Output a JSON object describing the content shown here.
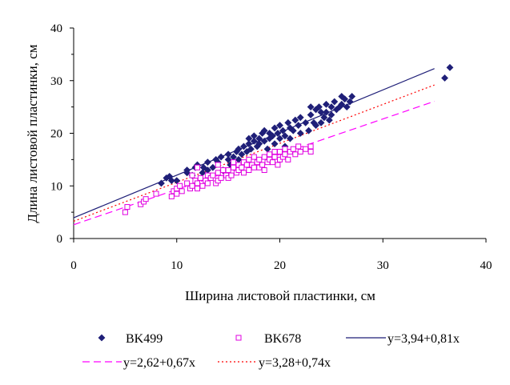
{
  "chart_data": {
    "type": "scatter",
    "title": "",
    "xlabel": "Ширина листовой пластинки, см",
    "ylabel": "Длина листовой пластинки, см",
    "xlim": [
      0,
      40
    ],
    "ylim": [
      0,
      40
    ],
    "x_ticks": [
      "0",
      "10",
      "20",
      "30",
      "40"
    ],
    "y_ticks": [
      "0",
      "10",
      "20",
      "30",
      "40"
    ],
    "grid": false,
    "legend_position": "bottom",
    "series": [
      {
        "name": "BK499",
        "kind": "points",
        "marker": "diamond",
        "color": "#1f1f78",
        "points": [
          [
            8.5,
            10.5
          ],
          [
            9.0,
            11.5
          ],
          [
            9.5,
            11.0
          ],
          [
            9.3,
            11.8
          ],
          [
            10.0,
            11.0
          ],
          [
            11.0,
            12.5
          ],
          [
            11.0,
            13.0
          ],
          [
            11.5,
            12.0
          ],
          [
            11.8,
            13.5
          ],
          [
            12.0,
            14.0
          ],
          [
            12.5,
            12.5
          ],
          [
            12.6,
            13.5
          ],
          [
            13.0,
            13.0
          ],
          [
            13.0,
            14.5
          ],
          [
            13.5,
            13.5
          ],
          [
            13.8,
            15.0
          ],
          [
            14.0,
            14.5
          ],
          [
            14.3,
            15.5
          ],
          [
            14.5,
            13.0
          ],
          [
            15.0,
            15.0
          ],
          [
            15.0,
            16.0
          ],
          [
            15.2,
            14.0
          ],
          [
            15.5,
            15.5
          ],
          [
            15.8,
            16.5
          ],
          [
            16.0,
            15.0
          ],
          [
            16.0,
            17.0
          ],
          [
            16.3,
            16.0
          ],
          [
            16.5,
            17.5
          ],
          [
            16.8,
            16.5
          ],
          [
            17.0,
            18.0
          ],
          [
            17.0,
            19.0
          ],
          [
            17.2,
            17.0
          ],
          [
            17.5,
            18.5
          ],
          [
            17.5,
            19.5
          ],
          [
            17.8,
            17.5
          ],
          [
            18.0,
            18.0
          ],
          [
            18.0,
            19.0
          ],
          [
            18.3,
            20.0
          ],
          [
            18.5,
            18.5
          ],
          [
            18.5,
            20.5
          ],
          [
            18.8,
            17.0
          ],
          [
            19.0,
            19.0
          ],
          [
            19.0,
            20.0
          ],
          [
            19.3,
            19.5
          ],
          [
            19.5,
            21.0
          ],
          [
            19.5,
            18.0
          ],
          [
            19.8,
            20.0
          ],
          [
            20.0,
            21.5
          ],
          [
            20.0,
            19.0
          ],
          [
            20.3,
            20.5
          ],
          [
            20.5,
            17.5
          ],
          [
            20.5,
            19.5
          ],
          [
            20.8,
            22.0
          ],
          [
            21.0,
            21.0
          ],
          [
            21.0,
            19.0
          ],
          [
            21.3,
            20.5
          ],
          [
            21.5,
            22.5
          ],
          [
            21.8,
            21.5
          ],
          [
            22.0,
            23.0
          ],
          [
            22.0,
            20.0
          ],
          [
            22.5,
            22.0
          ],
          [
            22.8,
            20.5
          ],
          [
            23.0,
            23.5
          ],
          [
            23.0,
            25.0
          ],
          [
            23.3,
            22.0
          ],
          [
            23.5,
            24.5
          ],
          [
            23.5,
            21.5
          ],
          [
            23.8,
            25.0
          ],
          [
            24.0,
            24.0
          ],
          [
            24.0,
            22.0
          ],
          [
            24.3,
            23.0
          ],
          [
            24.5,
            25.5
          ],
          [
            24.5,
            24.0
          ],
          [
            24.8,
            22.5
          ],
          [
            25.0,
            25.0
          ],
          [
            25.0,
            23.5
          ],
          [
            25.3,
            26.0
          ],
          [
            25.5,
            24.5
          ],
          [
            25.8,
            25.0
          ],
          [
            26.0,
            27.0
          ],
          [
            26.0,
            25.5
          ],
          [
            26.3,
            26.5
          ],
          [
            26.5,
            25.0
          ],
          [
            26.8,
            26.0
          ],
          [
            27.0,
            27.0
          ],
          [
            36.0,
            30.5
          ],
          [
            36.5,
            32.5
          ]
        ]
      },
      {
        "name": "BK678",
        "kind": "points",
        "marker": "square-open",
        "color": "#e000e0",
        "points": [
          [
            5.0,
            5.0
          ],
          [
            5.2,
            6.0
          ],
          [
            6.5,
            6.5
          ],
          [
            6.8,
            7.0
          ],
          [
            7.0,
            7.5
          ],
          [
            8.0,
            8.5
          ],
          [
            9.5,
            8.0
          ],
          [
            9.7,
            9.0
          ],
          [
            10.0,
            8.5
          ],
          [
            10.0,
            9.5
          ],
          [
            10.3,
            10.0
          ],
          [
            10.5,
            9.0
          ],
          [
            11.0,
            10.5
          ],
          [
            11.3,
            9.5
          ],
          [
            11.5,
            10.0
          ],
          [
            11.8,
            11.0
          ],
          [
            12.0,
            9.5
          ],
          [
            12.0,
            10.5
          ],
          [
            12.3,
            11.5
          ],
          [
            12.5,
            10.0
          ],
          [
            12.8,
            11.0
          ],
          [
            13.0,
            12.0
          ],
          [
            13.0,
            10.5
          ],
          [
            13.3,
            11.5
          ],
          [
            13.5,
            12.0
          ],
          [
            13.8,
            10.5
          ],
          [
            14.0,
            11.0
          ],
          [
            14.0,
            12.5
          ],
          [
            14.3,
            11.5
          ],
          [
            14.5,
            13.0
          ],
          [
            14.8,
            12.0
          ],
          [
            15.0,
            11.5
          ],
          [
            15.0,
            13.0
          ],
          [
            15.3,
            12.0
          ],
          [
            15.5,
            13.5
          ],
          [
            15.5,
            14.5
          ],
          [
            15.8,
            12.5
          ],
          [
            16.0,
            13.0
          ],
          [
            16.0,
            14.0
          ],
          [
            16.3,
            13.5
          ],
          [
            16.5,
            14.5
          ],
          [
            16.5,
            12.5
          ],
          [
            16.8,
            14.0
          ],
          [
            17.0,
            13.0
          ],
          [
            17.0,
            15.0
          ],
          [
            17.3,
            14.0
          ],
          [
            17.5,
            13.5
          ],
          [
            17.5,
            15.5
          ],
          [
            17.8,
            14.5
          ],
          [
            18.0,
            13.5
          ],
          [
            18.0,
            15.0
          ],
          [
            18.3,
            14.0
          ],
          [
            18.5,
            15.5
          ],
          [
            18.5,
            13.0
          ],
          [
            18.8,
            14.5
          ],
          [
            19.0,
            15.0
          ],
          [
            19.0,
            16.0
          ],
          [
            19.3,
            14.5
          ],
          [
            19.5,
            15.5
          ],
          [
            19.5,
            16.5
          ],
          [
            19.8,
            14.0
          ],
          [
            20.0,
            15.0
          ],
          [
            20.0,
            16.5
          ],
          [
            20.3,
            15.5
          ],
          [
            20.5,
            17.0
          ],
          [
            20.5,
            16.0
          ],
          [
            20.8,
            15.0
          ],
          [
            21.0,
            16.5
          ],
          [
            21.3,
            17.0
          ],
          [
            21.5,
            16.0
          ],
          [
            21.8,
            17.5
          ],
          [
            22.0,
            16.5
          ],
          [
            22.5,
            17.0
          ],
          [
            23.0,
            16.5
          ],
          [
            23.0,
            17.5
          ],
          [
            12.0,
            13.5
          ],
          [
            11.5,
            12.0
          ],
          [
            14.0,
            14.0
          ]
        ]
      },
      {
        "name": "y=3,94+0,81x",
        "kind": "line",
        "style": "solid",
        "color": "#1f1f78",
        "intercept": 3.94,
        "slope": 0.81,
        "x_range": [
          0,
          35
        ]
      },
      {
        "name": "y=2,62+0,67x",
        "kind": "line",
        "style": "dashed",
        "color": "#ff00ff",
        "intercept": 2.62,
        "slope": 0.67,
        "x_range": [
          0,
          35
        ]
      },
      {
        "name": "y=3,28+0,74x",
        "kind": "line",
        "style": "dotted",
        "color": "#ff0000",
        "intercept": 3.28,
        "slope": 0.74,
        "x_range": [
          0,
          35
        ]
      }
    ]
  }
}
